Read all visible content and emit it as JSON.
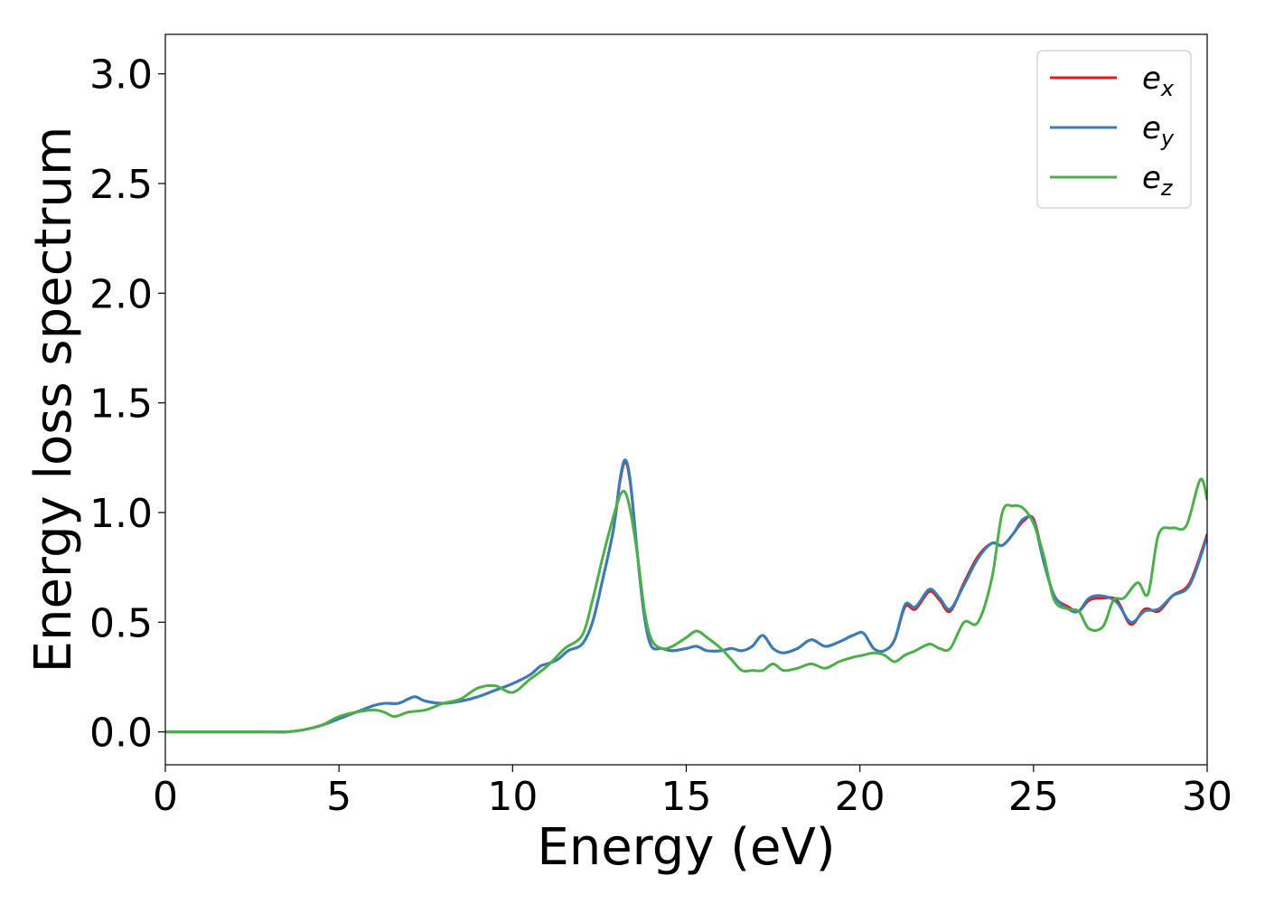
{
  "chart_data": {
    "type": "line",
    "title": "",
    "xlabel": "Energy (eV)",
    "ylabel": "Energy loss spectrum",
    "xlim": [
      0,
      30
    ],
    "ylim": [
      -0.15,
      3.18
    ],
    "xticks": [
      0,
      5,
      10,
      15,
      20,
      25,
      30
    ],
    "xtick_labels": [
      "0",
      "5",
      "10",
      "15",
      "20",
      "25",
      "30"
    ],
    "yticks": [
      0.0,
      0.5,
      1.0,
      1.5,
      2.0,
      2.5,
      3.0
    ],
    "ytick_labels": [
      "0.0",
      "0.5",
      "1.0",
      "1.5",
      "2.0",
      "2.5",
      "3.0"
    ],
    "grid": false,
    "legend_position": "top-right",
    "series": [
      {
        "name": "e_x",
        "legend_base": "e",
        "legend_sub": "x",
        "color": "#e41a1c",
        "x": [
          0,
          1,
          2,
          3,
          3.5,
          4,
          4.5,
          5,
          5.5,
          6,
          6.3,
          6.7,
          7,
          7.2,
          7.5,
          8,
          8.5,
          9,
          9.5,
          10,
          10.5,
          10.8,
          11,
          11.3,
          11.6,
          12,
          12.3,
          12.6,
          12.9,
          13.1,
          13.25,
          13.4,
          13.6,
          13.8,
          14,
          14.3,
          14.6,
          15,
          15.3,
          15.6,
          16,
          16.3,
          16.6,
          16.9,
          17.2,
          17.5,
          17.8,
          18.2,
          18.6,
          19,
          19.4,
          19.8,
          20.1,
          20.4,
          20.7,
          21,
          21.3,
          21.6,
          22,
          22.3,
          22.6,
          23,
          23.4,
          23.8,
          24.1,
          24.4,
          24.7,
          25,
          25.3,
          25.6,
          26,
          26.3,
          26.6,
          27,
          27.4,
          27.8,
          28.2,
          28.6,
          29,
          29.5,
          30
        ],
        "y": [
          0,
          0,
          0,
          0,
          0,
          0.01,
          0.03,
          0.06,
          0.09,
          0.12,
          0.13,
          0.13,
          0.15,
          0.16,
          0.14,
          0.13,
          0.14,
          0.16,
          0.19,
          0.22,
          0.26,
          0.3,
          0.31,
          0.33,
          0.37,
          0.4,
          0.5,
          0.7,
          0.92,
          1.15,
          1.23,
          1.12,
          0.8,
          0.52,
          0.39,
          0.38,
          0.37,
          0.38,
          0.39,
          0.37,
          0.37,
          0.38,
          0.37,
          0.39,
          0.44,
          0.38,
          0.36,
          0.38,
          0.42,
          0.39,
          0.41,
          0.44,
          0.45,
          0.38,
          0.37,
          0.42,
          0.57,
          0.56,
          0.64,
          0.6,
          0.55,
          0.68,
          0.8,
          0.86,
          0.85,
          0.9,
          0.96,
          0.97,
          0.78,
          0.62,
          0.57,
          0.55,
          0.6,
          0.61,
          0.6,
          0.49,
          0.56,
          0.55,
          0.62,
          0.68,
          0.9
        ]
      },
      {
        "name": "e_y",
        "legend_base": "e",
        "legend_sub": "y",
        "color": "#377eb8",
        "x": [
          0,
          1,
          2,
          3,
          3.5,
          4,
          4.5,
          5,
          5.5,
          6,
          6.3,
          6.7,
          7,
          7.2,
          7.5,
          8,
          8.5,
          9,
          9.5,
          10,
          10.5,
          10.8,
          11,
          11.3,
          11.6,
          12,
          12.3,
          12.6,
          12.9,
          13.1,
          13.25,
          13.4,
          13.6,
          13.8,
          14,
          14.3,
          14.6,
          15,
          15.3,
          15.6,
          16,
          16.3,
          16.6,
          16.9,
          17.2,
          17.5,
          17.8,
          18.2,
          18.6,
          19,
          19.4,
          19.8,
          20.1,
          20.4,
          20.7,
          21,
          21.3,
          21.6,
          22,
          22.3,
          22.6,
          23,
          23.4,
          23.8,
          24.1,
          24.4,
          24.7,
          25,
          25.3,
          25.6,
          26,
          26.3,
          26.6,
          27,
          27.4,
          27.8,
          28.2,
          28.6,
          29,
          29.5,
          30
        ],
        "y": [
          0,
          0,
          0,
          0,
          0,
          0.01,
          0.03,
          0.06,
          0.09,
          0.12,
          0.13,
          0.13,
          0.15,
          0.16,
          0.14,
          0.13,
          0.14,
          0.16,
          0.19,
          0.22,
          0.26,
          0.3,
          0.31,
          0.33,
          0.37,
          0.4,
          0.5,
          0.7,
          0.92,
          1.16,
          1.24,
          1.13,
          0.8,
          0.52,
          0.39,
          0.38,
          0.37,
          0.38,
          0.39,
          0.37,
          0.37,
          0.38,
          0.37,
          0.39,
          0.44,
          0.38,
          0.36,
          0.38,
          0.42,
          0.39,
          0.41,
          0.44,
          0.45,
          0.38,
          0.37,
          0.42,
          0.58,
          0.57,
          0.65,
          0.61,
          0.56,
          0.67,
          0.79,
          0.86,
          0.85,
          0.9,
          0.97,
          0.96,
          0.77,
          0.62,
          0.56,
          0.55,
          0.61,
          0.62,
          0.59,
          0.5,
          0.55,
          0.56,
          0.62,
          0.67,
          0.89
        ]
      },
      {
        "name": "e_z",
        "legend_base": "e",
        "legend_sub": "z",
        "color": "#4daf4a",
        "x": [
          0,
          1,
          2,
          3,
          3.5,
          4,
          4.5,
          5,
          5.5,
          6,
          6.3,
          6.6,
          7,
          7.5,
          8,
          8.5,
          9,
          9.5,
          10,
          10.5,
          11,
          11.5,
          12,
          12.3,
          12.6,
          12.9,
          13.1,
          13.25,
          13.4,
          13.6,
          13.8,
          14,
          14.3,
          14.6,
          15,
          15.3,
          15.6,
          16,
          16.3,
          16.6,
          16.9,
          17.2,
          17.5,
          17.8,
          18.2,
          18.6,
          19,
          19.4,
          19.8,
          20.1,
          20.4,
          20.7,
          21,
          21.3,
          21.6,
          22,
          22.3,
          22.6,
          23,
          23.4,
          23.8,
          24.1,
          24.4,
          24.7,
          25,
          25.3,
          25.6,
          26,
          26.3,
          26.6,
          27,
          27.3,
          27.6,
          28,
          28.3,
          28.6,
          29,
          29.4,
          29.8,
          30
        ],
        "y": [
          0,
          0,
          0,
          0,
          0,
          0.01,
          0.03,
          0.07,
          0.09,
          0.1,
          0.09,
          0.07,
          0.09,
          0.1,
          0.13,
          0.15,
          0.2,
          0.21,
          0.18,
          0.24,
          0.3,
          0.38,
          0.44,
          0.6,
          0.8,
          0.98,
          1.08,
          1.09,
          1.0,
          0.8,
          0.55,
          0.42,
          0.38,
          0.39,
          0.43,
          0.46,
          0.43,
          0.38,
          0.33,
          0.28,
          0.28,
          0.28,
          0.31,
          0.28,
          0.29,
          0.31,
          0.29,
          0.32,
          0.34,
          0.35,
          0.36,
          0.35,
          0.32,
          0.35,
          0.37,
          0.4,
          0.38,
          0.38,
          0.5,
          0.5,
          0.7,
          1.0,
          1.03,
          1.02,
          0.95,
          0.8,
          0.6,
          0.56,
          0.55,
          0.47,
          0.48,
          0.6,
          0.61,
          0.68,
          0.63,
          0.9,
          0.93,
          0.94,
          1.15,
          1.06
        ]
      }
    ]
  }
}
